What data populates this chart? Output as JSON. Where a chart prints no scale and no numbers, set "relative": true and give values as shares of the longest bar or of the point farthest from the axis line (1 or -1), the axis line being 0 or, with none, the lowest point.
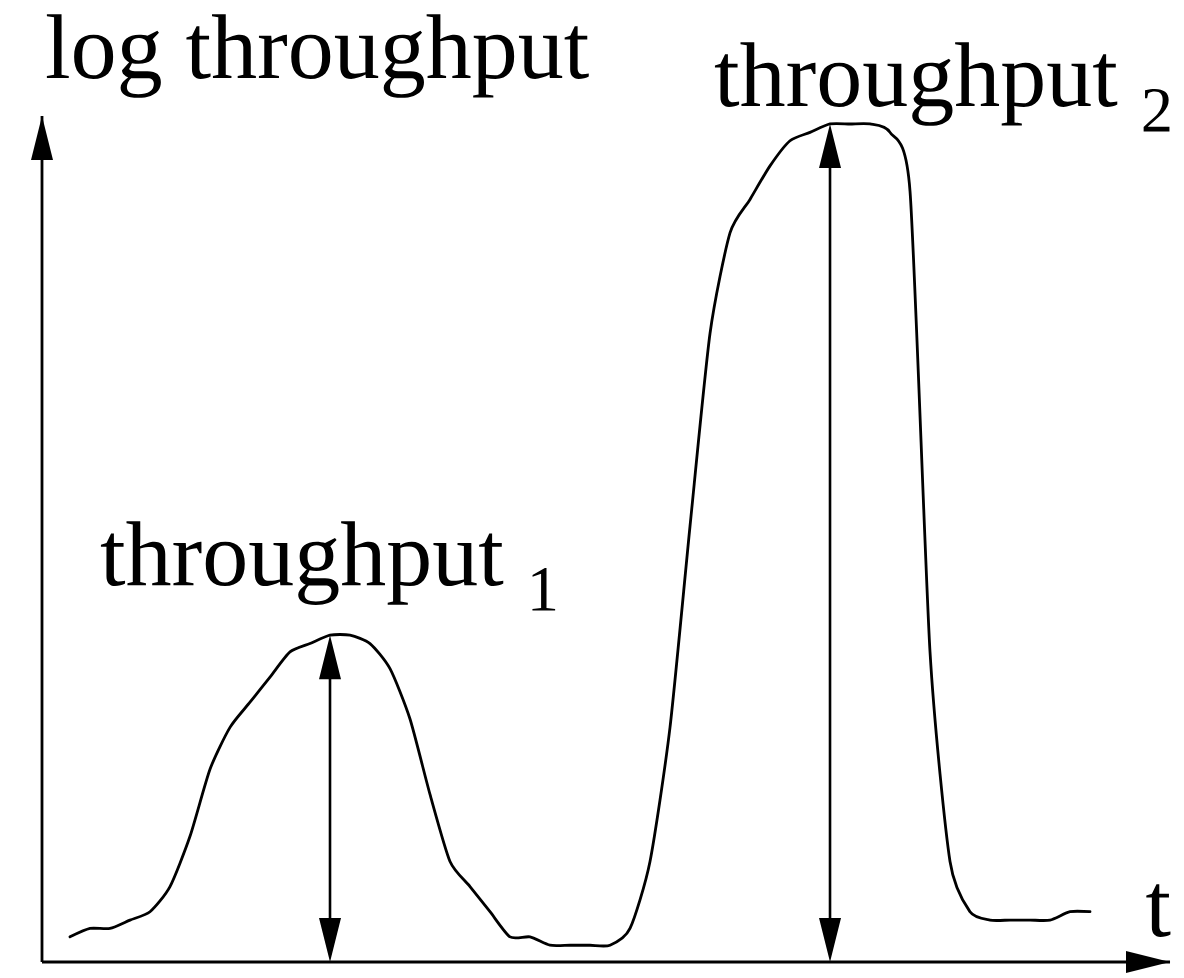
{
  "chart_data": {
    "type": "line",
    "xlabel": "t",
    "ylabel": "log throughput",
    "relative": true,
    "categories": [
      null,
      null,
      null,
      null,
      null,
      null,
      null,
      null,
      null,
      null,
      null,
      null,
      null,
      null,
      null,
      null,
      null,
      null,
      null,
      null,
      null,
      null,
      null,
      null,
      null,
      null,
      null,
      null,
      null,
      null,
      null,
      null,
      null,
      null,
      null,
      null,
      null,
      null,
      null,
      null,
      null,
      null,
      null,
      null,
      null,
      null,
      null,
      null,
      null,
      null,
      null,
      null
    ],
    "values": [
      0.03,
      0.04,
      0.04,
      0.05,
      0.06,
      0.09,
      0.15,
      0.23,
      0.28,
      0.31,
      0.34,
      0.37,
      0.38,
      0.39,
      0.39,
      0.38,
      0.35,
      0.29,
      0.2,
      0.12,
      0.09,
      0.06,
      0.03,
      0.03,
      0.02,
      0.02,
      0.02,
      0.02,
      0.04,
      0.12,
      0.28,
      0.52,
      0.75,
      0.87,
      0.91,
      0.95,
      0.98,
      0.99,
      1,
      1,
      1,
      0.99,
      0.92,
      0.37,
      0.12,
      0.06,
      0.05,
      0.05,
      0.05,
      0.05,
      0.06,
      0.06
    ],
    "color": "#000000",
    "annotations": [
      "throughput $_{1}$",
      "throughput $_{2}$"
    ]
  }
}
